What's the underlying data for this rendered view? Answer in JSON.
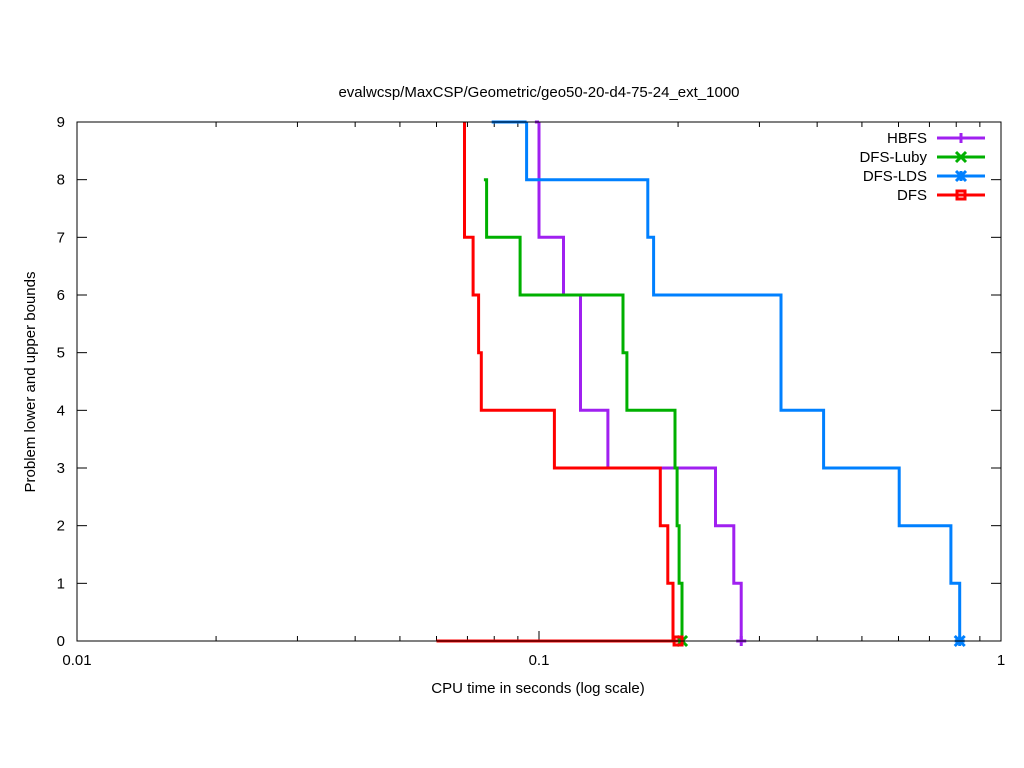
{
  "chart_data": {
    "type": "line",
    "title": "evalwcsp/MaxCSP/Geometric/geo50-20-d4-75-24_ext_1000",
    "xlabel": "CPU time in seconds (log scale)",
    "ylabel": "Problem lower and upper bounds",
    "xscale": "log",
    "xlim": [
      0.01,
      1
    ],
    "ylim": [
      0,
      9
    ],
    "x_ticks": [
      0.01,
      0.1,
      1
    ],
    "x_tick_labels": [
      "0.01",
      "0.1",
      "1"
    ],
    "y_ticks": [
      0,
      1,
      2,
      3,
      4,
      5,
      6,
      7,
      8,
      9
    ],
    "y_tick_labels": [
      "0",
      "1",
      "2",
      "3",
      "4",
      "5",
      "6",
      "7",
      "8",
      "9"
    ],
    "grid": false,
    "legend_position": "top-right",
    "series": [
      {
        "name": "HBFS",
        "color": "#a020f0",
        "marker": "plus",
        "upper": [
          [
            0.1,
            9
          ],
          [
            0.1,
            7
          ],
          [
            0.113,
            7
          ],
          [
            0.113,
            6
          ],
          [
            0.123,
            6
          ],
          [
            0.123,
            4
          ],
          [
            0.141,
            4
          ],
          [
            0.141,
            3
          ],
          [
            0.241,
            3
          ],
          [
            0.241,
            2
          ],
          [
            0.264,
            2
          ],
          [
            0.264,
            1
          ],
          [
            0.274,
            1
          ],
          [
            0.274,
            0
          ]
        ],
        "lower": [
          [
            0.098,
            9
          ],
          [
            0.1,
            9
          ]
        ],
        "end": [
          0.274,
          0
        ]
      },
      {
        "name": "DFS-Luby",
        "color": "#00b000",
        "marker": "cross",
        "upper": [
          [
            0.076,
            8
          ],
          [
            0.077,
            8
          ],
          [
            0.077,
            7
          ],
          [
            0.091,
            7
          ],
          [
            0.091,
            6
          ],
          [
            0.152,
            6
          ],
          [
            0.152,
            5
          ],
          [
            0.155,
            5
          ],
          [
            0.155,
            4
          ],
          [
            0.197,
            4
          ],
          [
            0.197,
            3
          ],
          [
            0.199,
            3
          ],
          [
            0.199,
            2
          ],
          [
            0.201,
            2
          ],
          [
            0.201,
            1
          ],
          [
            0.204,
            1
          ],
          [
            0.204,
            0
          ]
        ],
        "lower": [
          [
            0.06,
            0
          ],
          [
            0.204,
            0
          ]
        ],
        "end": [
          0.204,
          0
        ]
      },
      {
        "name": "DFS-LDS",
        "color": "#0080ff",
        "marker": "star",
        "upper": [
          [
            0.094,
            9
          ],
          [
            0.094,
            8
          ],
          [
            0.172,
            8
          ],
          [
            0.172,
            7
          ],
          [
            0.177,
            7
          ],
          [
            0.177,
            6
          ],
          [
            0.334,
            6
          ],
          [
            0.334,
            4
          ],
          [
            0.413,
            4
          ],
          [
            0.413,
            3
          ],
          [
            0.602,
            3
          ],
          [
            0.602,
            2
          ],
          [
            0.779,
            2
          ],
          [
            0.779,
            1
          ],
          [
            0.814,
            1
          ],
          [
            0.814,
            0
          ]
        ],
        "lower": [
          [
            0.079,
            9
          ],
          [
            0.094,
            9
          ]
        ],
        "end": [
          0.814,
          0
        ]
      },
      {
        "name": "DFS",
        "color": "#ff0000",
        "marker": "square",
        "upper": [
          [
            0.069,
            9
          ],
          [
            0.069,
            7
          ],
          [
            0.072,
            7
          ],
          [
            0.072,
            6
          ],
          [
            0.074,
            6
          ],
          [
            0.074,
            5
          ],
          [
            0.075,
            5
          ],
          [
            0.075,
            4
          ],
          [
            0.108,
            4
          ],
          [
            0.108,
            3
          ],
          [
            0.183,
            3
          ],
          [
            0.183,
            2
          ],
          [
            0.19,
            2
          ],
          [
            0.19,
            1
          ],
          [
            0.195,
            1
          ],
          [
            0.195,
            0
          ],
          [
            0.2,
            0
          ]
        ],
        "lower": [
          [
            0.06,
            0
          ],
          [
            0.2,
            0
          ]
        ],
        "end": [
          0.2,
          0
        ]
      }
    ]
  }
}
